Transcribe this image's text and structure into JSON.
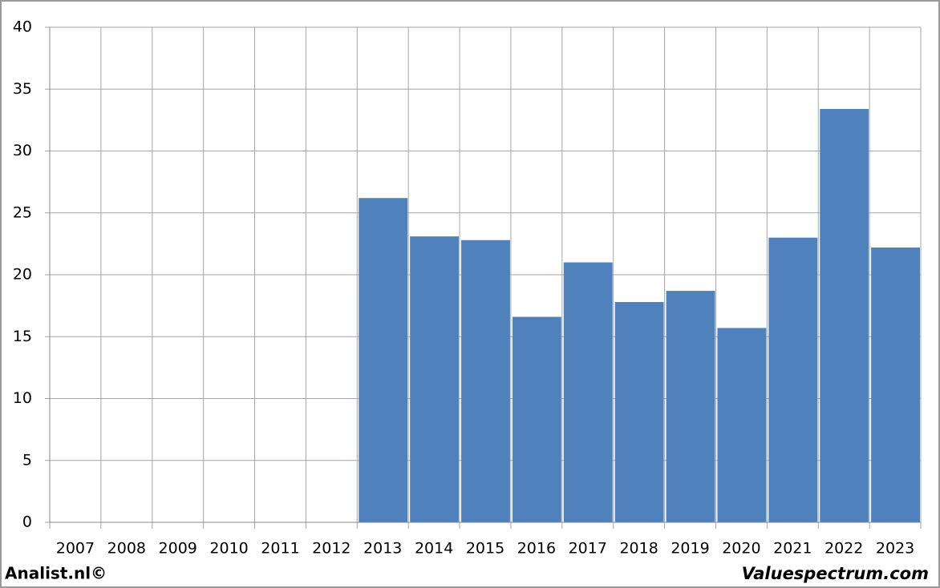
{
  "chart_data": {
    "type": "bar",
    "categories": [
      "2007",
      "2008",
      "2009",
      "2010",
      "2011",
      "2012",
      "2013",
      "2014",
      "2015",
      "2016",
      "2017",
      "2018",
      "2019",
      "2020",
      "2021",
      "2022",
      "2023"
    ],
    "values": [
      null,
      null,
      null,
      null,
      null,
      null,
      26.2,
      23.1,
      22.8,
      16.6,
      21.0,
      17.8,
      18.7,
      15.7,
      23.0,
      33.4,
      22.2
    ],
    "color": "#4f81bd",
    "ylim": [
      0,
      40
    ],
    "yticks": [
      0,
      5,
      10,
      15,
      20,
      25,
      30,
      35,
      40
    ],
    "grid": true,
    "annotations": [
      "Analist.nl©",
      "Valuespectrum.com"
    ]
  }
}
